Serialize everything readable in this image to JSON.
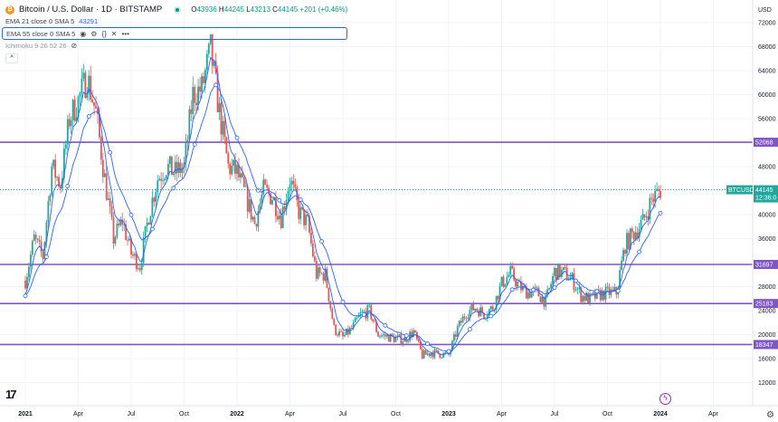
{
  "header": {
    "symbol_icon": "bitcoin-icon",
    "symbol": "Bitcoin / U.S. Dollar · 1D · BITSTAMP",
    "market_status": "open",
    "ohlc": {
      "o_label": "O",
      "o": "43936",
      "h_label": "H",
      "h": "44245",
      "l_label": "L",
      "l": "43213",
      "c_label": "C",
      "c": "44145",
      "change": "+201 (+0.46%)"
    }
  },
  "indicators": [
    {
      "label": "EMA 21 close 0 SMA 5",
      "value": "43291"
    },
    {
      "label": "EMA 55 close 0 SMA 5"
    },
    {
      "label": "Ichimoku 9 26 52 26"
    }
  ],
  "price_axis": {
    "currency": "USD",
    "ticks": [
      "72000",
      "68000",
      "64000",
      "60000",
      "56000",
      "48000",
      "40000",
      "36000",
      "28000",
      "24000",
      "20000",
      "16000",
      "12000"
    ],
    "levels": [
      "52068",
      "31697",
      "25183",
      "18347"
    ],
    "last_price": "44145",
    "last_label": "BTCUSD",
    "countdown": "12:36:0"
  },
  "time_axis": {
    "ticks": [
      "2021",
      "Apr",
      "Jul",
      "Oct",
      "2022",
      "Apr",
      "Jul",
      "Oct",
      "2023",
      "Apr",
      "Jul",
      "Oct",
      "2024",
      "Apr"
    ]
  },
  "colors": {
    "up": "#26a69a",
    "down": "#ef5350",
    "level": "#7e57c2",
    "ema21": "#2962ff",
    "ema55": "#2962ff"
  },
  "chart_data": {
    "type": "candlestick",
    "symbol": "BTCUSD",
    "interval": "1D",
    "approx_closes_semimonthly": [
      29000,
      36000,
      33000,
      48000,
      45000,
      56000,
      59000,
      63000,
      57000,
      46000,
      36000,
      39000,
      33500,
      31500,
      40000,
      46000,
      48000,
      47000,
      48000,
      60000,
      61000,
      67500,
      57000,
      48000,
      47000,
      43000,
      38500,
      44000,
      43000,
      39500,
      46000,
      40500,
      38500,
      30000,
      30000,
      21000,
      19500,
      21000,
      23300,
      24000,
      20000,
      19700,
      19300,
      19200,
      20500,
      16500,
      17000,
      16800,
      16600,
      21000,
      23700,
      24500,
      23500,
      24500,
      28500,
      30300,
      28000,
      27000,
      27000,
      25500,
      30500,
      30300,
      29200,
      26500,
      25900,
      26600,
      27000,
      27000,
      35000,
      37000,
      38700,
      42500,
      44145
    ],
    "start": "2021-01",
    "horizontal_levels": [
      52068,
      31697,
      25183,
      18347
    ],
    "ylim": [
      10000,
      76000
    ]
  }
}
